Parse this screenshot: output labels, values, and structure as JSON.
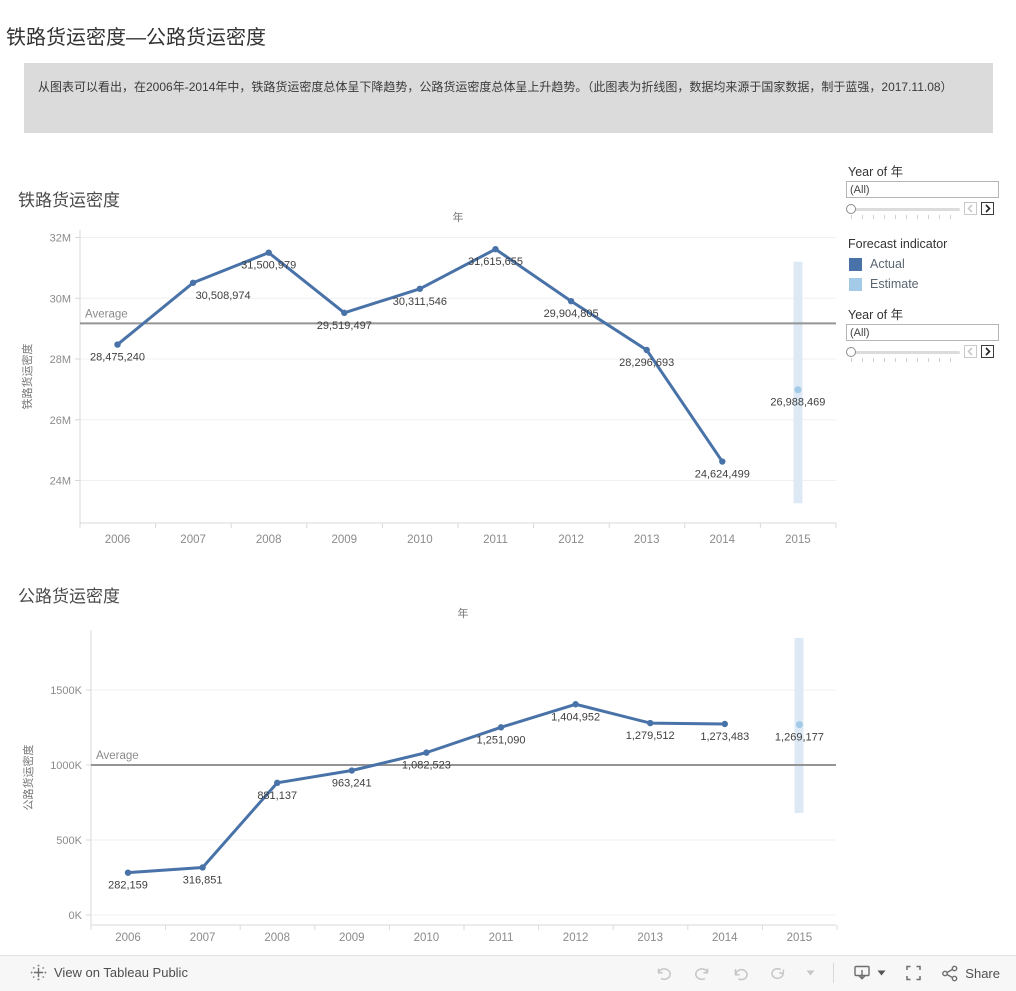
{
  "page": {
    "title": "铁路货运密度—公路货运密度",
    "description": "从图表可以看出，在2006年-2014年中，铁路货运密度总体呈下降趋势，公路货运密度总体呈上升趋势。（此图表为折线图，数据均来源于国家数据，制于蓝强，2017.11.08）"
  },
  "colors": {
    "actual": "#4973a8",
    "estimate": "#a3cbe8",
    "forecast_band": "#ddeaf5",
    "average_line": "#949494",
    "grid": "#f0f0f0",
    "axis": "#d9d9d9",
    "tick_text": "#8b8b8b",
    "value_label_text": "#3f3f3f",
    "axis_title_text": "#767676"
  },
  "filters": {
    "year_top": {
      "label": "Year of 年",
      "value": "(All)"
    },
    "year_bottom": {
      "label": "Year of 年",
      "value": "(All)"
    }
  },
  "legend": {
    "title": "Forecast indicator",
    "items": [
      {
        "label": "Actual",
        "color": "#4973a8"
      },
      {
        "label": "Estimate",
        "color": "#a3cbe8"
      }
    ]
  },
  "chart_data": [
    {
      "type": "line",
      "title": "铁路货运密度",
      "xlabel": "年",
      "ylabel": "铁路货运密度",
      "categories": [
        "2006",
        "2007",
        "2008",
        "2009",
        "2010",
        "2011",
        "2012",
        "2013",
        "2014",
        "2015"
      ],
      "values": [
        28475240,
        30508974,
        31500979,
        29519497,
        30311546,
        31615655,
        29904805,
        28296693,
        24624499,
        26988469
      ],
      "value_labels": [
        "28,475,240",
        "30,508,974",
        "31,500,979",
        "29,519,497",
        "30,311,546",
        "31,615,655",
        "29,904,805",
        "28,296,693",
        "24,624,499",
        "26,988,469"
      ],
      "estimate_index": 9,
      "yticks": [
        {
          "value": 24000000,
          "label": "24M"
        },
        {
          "value": 26000000,
          "label": "26M"
        },
        {
          "value": 28000000,
          "label": "28M"
        },
        {
          "value": 30000000,
          "label": "30M"
        },
        {
          "value": 32000000,
          "label": "32M"
        }
      ],
      "ylim": [
        22600000,
        32300000
      ],
      "grid": true,
      "average": {
        "label": "Average",
        "value": 29174636
      },
      "forecast_band": {
        "category": "2015",
        "from": 23250000,
        "to": 31200000
      }
    },
    {
      "type": "line",
      "title": "公路货运密度",
      "xlabel": "年",
      "ylabel": "公路货运密度",
      "categories": [
        "2006",
        "2007",
        "2008",
        "2009",
        "2010",
        "2011",
        "2012",
        "2013",
        "2014",
        "2015"
      ],
      "values": [
        282159,
        316851,
        881137,
        963241,
        1082523,
        1251090,
        1404952,
        1279512,
        1273483,
        1269177
      ],
      "value_labels": [
        "282,159",
        "316,851",
        "881,137",
        "963,241",
        "1,082,523",
        "1,251,090",
        "1,404,952",
        "1,279,512",
        "1,273,483",
        "1,269,177"
      ],
      "estimate_index": 9,
      "yticks": [
        {
          "value": 0,
          "label": "0K"
        },
        {
          "value": 500000,
          "label": "500K"
        },
        {
          "value": 1000000,
          "label": "1000K"
        },
        {
          "value": 1500000,
          "label": "1500K"
        }
      ],
      "ylim": [
        -67000,
        1900000
      ],
      "grid": true,
      "average": {
        "label": "Average",
        "value": 1000412
      },
      "forecast_band": {
        "category": "2015",
        "from": 680000,
        "to": 1847000
      }
    }
  ],
  "footer": {
    "view_label": "View on Tableau Public",
    "share_label": "Share"
  },
  "icons": {
    "tableau_logo": "sparkle-plus",
    "undo": "curved-arrow-left",
    "redo": "curved-arrow-right",
    "revert": "history-arrow",
    "refresh": "loop-arrow",
    "dropdown_caret": "triangle-down",
    "download": "monitor-down-arrow",
    "fullscreen": "corner-brackets",
    "share": "connected-nodes",
    "slider_prev": "chevron-left",
    "slider_next": "chevron-right"
  }
}
